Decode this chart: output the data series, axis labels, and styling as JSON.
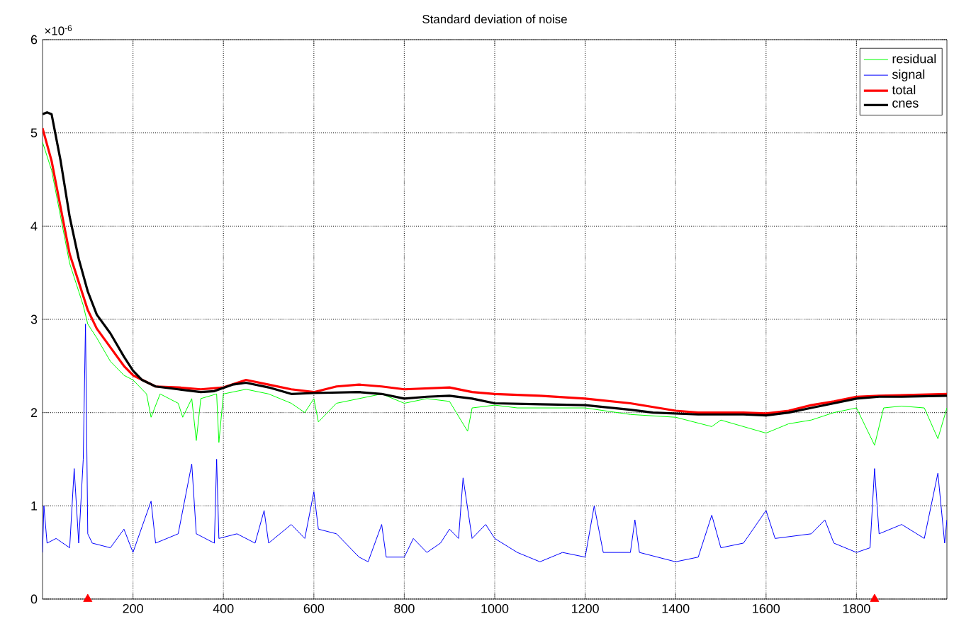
{
  "chart_data": {
    "type": "line",
    "title": "Standard deviation of noise",
    "annotations": [
      "×10$^{-6}$"
    ],
    "xlim": [
      0,
      2000
    ],
    "ylim": [
      0,
      6
    ],
    "xticks": [
      200,
      400,
      600,
      800,
      1000,
      1200,
      1400,
      1600,
      1800
    ],
    "yticks": [
      0,
      1,
      2,
      3,
      4,
      5,
      6
    ],
    "grid": true,
    "legend": "top right",
    "series": [
      {
        "name": "residual",
        "color": "#00ff00",
        "x": [
          0,
          20,
          40,
          60,
          80,
          90,
          100,
          120,
          150,
          180,
          200,
          230,
          240,
          260,
          300,
          310,
          330,
          340,
          350,
          385,
          390,
          400,
          450,
          500,
          550,
          580,
          600,
          610,
          650,
          700,
          750,
          800,
          850,
          900,
          940,
          950,
          1000,
          1050,
          1100,
          1200,
          1300,
          1400,
          1480,
          1500,
          1600,
          1650,
          1700,
          1750,
          1800,
          1840,
          1860,
          1900,
          1950,
          1980,
          2000
        ],
        "values": [
          4.9,
          4.6,
          4.1,
          3.6,
          3.3,
          3.15,
          2.95,
          2.8,
          2.55,
          2.4,
          2.35,
          2.2,
          1.95,
          2.2,
          2.1,
          1.95,
          2.15,
          1.7,
          2.15,
          2.2,
          1.68,
          2.2,
          2.25,
          2.2,
          2.1,
          2.0,
          2.15,
          1.9,
          2.1,
          2.15,
          2.2,
          2.1,
          2.15,
          2.12,
          1.8,
          2.05,
          2.08,
          2.05,
          2.05,
          2.05,
          1.98,
          1.95,
          1.85,
          1.92,
          1.78,
          1.88,
          1.92,
          2.0,
          2.05,
          1.65,
          2.05,
          2.07,
          2.05,
          1.72,
          2.05
        ]
      },
      {
        "name": "signal",
        "color": "#0000ff",
        "x": [
          0,
          3,
          10,
          30,
          60,
          70,
          80,
          90,
          95,
          100,
          110,
          150,
          180,
          200,
          240,
          250,
          300,
          330,
          340,
          380,
          385,
          390,
          430,
          470,
          490,
          500,
          550,
          580,
          600,
          610,
          650,
          700,
          720,
          750,
          760,
          800,
          820,
          850,
          880,
          900,
          920,
          930,
          950,
          980,
          1000,
          1050,
          1100,
          1150,
          1200,
          1220,
          1240,
          1300,
          1310,
          1320,
          1400,
          1450,
          1480,
          1500,
          1550,
          1600,
          1620,
          1700,
          1730,
          1750,
          1800,
          1830,
          1840,
          1850,
          1900,
          1950,
          1980,
          1995,
          2000
        ],
        "values": [
          0.5,
          1.0,
          0.6,
          0.65,
          0.55,
          1.4,
          0.6,
          1.5,
          2.95,
          0.7,
          0.6,
          0.55,
          0.75,
          0.5,
          1.05,
          0.6,
          0.7,
          1.45,
          0.7,
          0.6,
          1.5,
          0.65,
          0.7,
          0.6,
          0.95,
          0.6,
          0.8,
          0.65,
          1.15,
          0.75,
          0.7,
          0.45,
          0.4,
          0.8,
          0.45,
          0.45,
          0.65,
          0.5,
          0.6,
          0.75,
          0.65,
          1.3,
          0.65,
          0.8,
          0.65,
          0.5,
          0.4,
          0.5,
          0.45,
          1.0,
          0.5,
          0.5,
          0.85,
          0.5,
          0.4,
          0.45,
          0.9,
          0.55,
          0.6,
          0.95,
          0.65,
          0.7,
          0.85,
          0.6,
          0.5,
          0.55,
          1.4,
          0.7,
          0.8,
          0.65,
          1.35,
          0.6,
          0.85
        ]
      },
      {
        "name": "total",
        "color": "#ff0000",
        "x": [
          0,
          20,
          40,
          60,
          80,
          100,
          120,
          150,
          180,
          200,
          250,
          300,
          350,
          400,
          450,
          500,
          550,
          600,
          650,
          700,
          750,
          800,
          900,
          950,
          1000,
          1100,
          1200,
          1300,
          1400,
          1450,
          1550,
          1600,
          1650,
          1700,
          1750,
          1800,
          1850,
          2000
        ],
        "values": [
          5.05,
          4.7,
          4.2,
          3.7,
          3.4,
          3.1,
          2.9,
          2.7,
          2.5,
          2.4,
          2.28,
          2.27,
          2.25,
          2.27,
          2.35,
          2.3,
          2.25,
          2.22,
          2.28,
          2.3,
          2.28,
          2.25,
          2.27,
          2.22,
          2.2,
          2.18,
          2.15,
          2.1,
          2.02,
          2.0,
          2.0,
          1.99,
          2.02,
          2.08,
          2.12,
          2.17,
          2.18,
          2.2
        ]
      },
      {
        "name": "cnes",
        "color": "#000000",
        "x": [
          0,
          10,
          20,
          40,
          60,
          80,
          100,
          120,
          150,
          180,
          200,
          220,
          250,
          300,
          350,
          380,
          420,
          450,
          500,
          550,
          600,
          700,
          750,
          800,
          850,
          900,
          950,
          1000,
          1100,
          1200,
          1300,
          1350,
          1450,
          1550,
          1600,
          1650,
          1700,
          1750,
          1800,
          1850,
          1900,
          2000
        ],
        "values": [
          5.2,
          5.22,
          5.2,
          4.7,
          4.1,
          3.65,
          3.3,
          3.05,
          2.85,
          2.6,
          2.45,
          2.35,
          2.28,
          2.25,
          2.22,
          2.23,
          2.3,
          2.32,
          2.27,
          2.2,
          2.21,
          2.22,
          2.2,
          2.15,
          2.17,
          2.18,
          2.15,
          2.1,
          2.09,
          2.08,
          2.03,
          2.0,
          1.98,
          1.98,
          1.97,
          2.0,
          2.05,
          2.1,
          2.15,
          2.17,
          2.17,
          2.18
        ]
      },
      {
        "type": "scatter",
        "color": "#ff0000",
        "marker": "triangle",
        "x": [
          100,
          1840
        ],
        "values": [
          0,
          0
        ]
      }
    ]
  }
}
